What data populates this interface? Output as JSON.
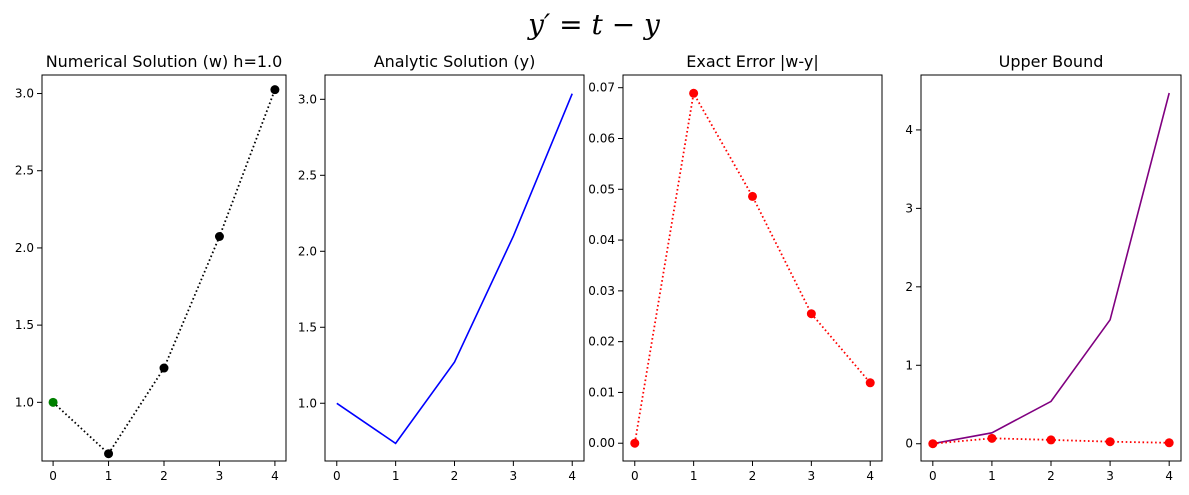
{
  "figure": {
    "suptitle": "y′ = t − y"
  },
  "chart_data": [
    {
      "type": "line",
      "title": "Numerical Solution (w) h=1.0",
      "xlabel": "",
      "ylabel": "",
      "xlim": [
        -0.2,
        4.2
      ],
      "ylim": [
        0.62,
        3.12
      ],
      "xticks": [
        "0",
        "1",
        "2",
        "3",
        "4"
      ],
      "yticks": [
        "1.0",
        "1.5",
        "2.0",
        "2.5",
        "3.0"
      ],
      "grid": false,
      "series": [
        {
          "x": [
            0,
            1,
            2,
            3,
            4
          ],
          "values": [
            1.0,
            0.667,
            1.222,
            2.074,
            3.025
          ],
          "color": "#000000",
          "linestyle": "dotted",
          "marker": "o",
          "point_colors": [
            "#008000",
            "#000000",
            "#000000",
            "#000000",
            "#000000"
          ]
        }
      ]
    },
    {
      "type": "line",
      "title": "Analytic Solution (y)",
      "xlabel": "",
      "ylabel": "",
      "xlim": [
        -0.2,
        4.2
      ],
      "ylim": [
        0.62,
        3.16
      ],
      "xticks": [
        "0",
        "1",
        "2",
        "3",
        "4"
      ],
      "yticks": [
        "1.0",
        "1.5",
        "2.0",
        "2.5",
        "3.0"
      ],
      "grid": false,
      "series": [
        {
          "x": [
            0,
            1,
            2,
            3,
            4
          ],
          "values": [
            1.0,
            0.736,
            1.271,
            2.1,
            3.037
          ],
          "color": "#0000ff",
          "linestyle": "solid",
          "marker": ""
        }
      ]
    },
    {
      "type": "line",
      "title": "Exact Error |w-y|",
      "xlabel": "",
      "ylabel": "",
      "xlim": [
        -0.2,
        4.2
      ],
      "ylim": [
        -0.0035,
        0.0725
      ],
      "xticks": [
        "0",
        "1",
        "2",
        "3",
        "4"
      ],
      "yticks": [
        "0.00",
        "0.01",
        "0.02",
        "0.03",
        "0.04",
        "0.05",
        "0.06",
        "0.07"
      ],
      "grid": false,
      "series": [
        {
          "x": [
            0,
            1,
            2,
            3,
            4
          ],
          "values": [
            0.0,
            0.0689,
            0.0486,
            0.0255,
            0.0119
          ],
          "color": "#ff0000",
          "linestyle": "dotted",
          "marker": "o"
        }
      ]
    },
    {
      "type": "line",
      "title": "Upper Bound",
      "xlabel": "",
      "ylabel": "",
      "xlim": [
        -0.2,
        4.2
      ],
      "ylim": [
        -0.22,
        4.7
      ],
      "xticks": [
        "0",
        "1",
        "2",
        "3",
        "4"
      ],
      "yticks": [
        "0",
        "1",
        "2",
        "3",
        "4"
      ],
      "grid": false,
      "series": [
        {
          "x": [
            0,
            1,
            2,
            3,
            4
          ],
          "values": [
            0.0,
            0.14,
            0.54,
            1.58,
            4.47
          ],
          "color": "#800080",
          "linestyle": "solid",
          "marker": ""
        },
        {
          "x": [
            0,
            1,
            2,
            3,
            4
          ],
          "values": [
            0.0,
            0.0689,
            0.0486,
            0.0255,
            0.0119
          ],
          "color": "#ff0000",
          "linestyle": "dotted",
          "marker": "o"
        }
      ]
    }
  ]
}
